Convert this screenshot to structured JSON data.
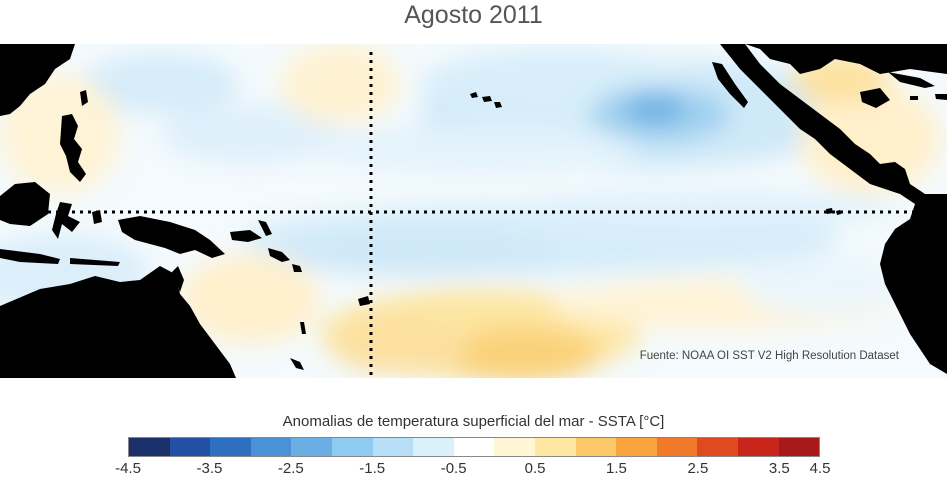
{
  "title": "Agosto 2011",
  "source_note": "Fuente: NOAA OI SST V2 High Resolution Dataset",
  "colorbar": {
    "label": "Anomalias de temperatura superficial del mar - SSTA  [°C]",
    "colors": [
      "#1b2f6b",
      "#2350a4",
      "#2f6fbf",
      "#4a92d6",
      "#6aaee3",
      "#8fcaf0",
      "#b6def6",
      "#daf0fb",
      "#ffffff",
      "#fff6d6",
      "#fde7a3",
      "#fbc96a",
      "#f8a33c",
      "#f17a2a",
      "#e04a1f",
      "#c8261b",
      "#a81a1a"
    ],
    "ticks": [
      "-4.5",
      "-3.5",
      "-2.5",
      "-1.5",
      "-0.5",
      "0.5",
      "1.5",
      "2.5",
      "3.5",
      "4.5"
    ]
  },
  "chart_data": {
    "type": "heatmap",
    "title": "Agosto 2011",
    "variable": "Anomalias de temperatura superficial del mar - SSTA",
    "units": "°C",
    "color_scale_range": [
      -4.5,
      4.5
    ],
    "color_step": 0.5,
    "features": {
      "land_color": "#000000",
      "equator_line": "dotted",
      "date_line": "dotted"
    }
  }
}
